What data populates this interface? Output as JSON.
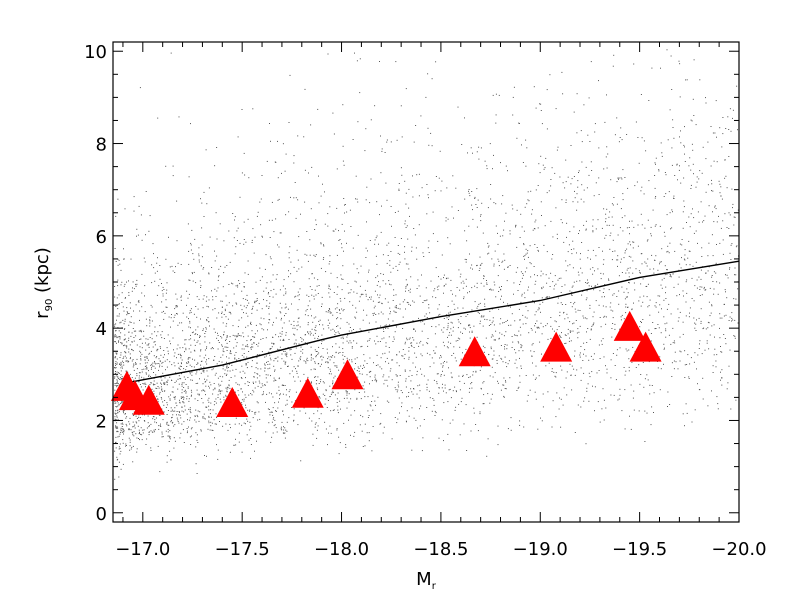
{
  "chart_data": {
    "type": "scatter",
    "title": "",
    "xlabel": {
      "main": "M",
      "sub": "r"
    },
    "ylabel": {
      "main": "r",
      "sub": "90",
      "rest": " (kpc)"
    },
    "xlim": [
      -16.85,
      -20.0
    ],
    "ylim": [
      -0.2,
      10.2
    ],
    "x_ticks": [
      -17.0,
      -17.5,
      -18.0,
      -18.5,
      -19.0,
      -19.5,
      -20.0
    ],
    "x_tick_labels": [
      "−17.0",
      "−17.5",
      "−18.0",
      "−18.5",
      "−19.0",
      "−19.5",
      "−20.0"
    ],
    "y_ticks": [
      0,
      2,
      4,
      6,
      8,
      10
    ],
    "y_tick_labels": [
      "0",
      "2",
      "4",
      "6",
      "8",
      "10"
    ],
    "grid": false,
    "series": [
      {
        "kind": "line",
        "color": "#000000",
        "x": [
          -16.9,
          -17.4,
          -17.9,
          -18.0,
          -18.5,
          -19.0,
          -19.5,
          -20.0
        ],
        "y": [
          2.8,
          3.2,
          3.75,
          3.85,
          4.25,
          4.6,
          5.1,
          5.45
        ]
      },
      {
        "kind": "marker",
        "marker": "triangle",
        "color": "#ff0000",
        "x": [
          -16.92,
          -16.96,
          -17.03,
          -17.45,
          -17.83,
          -18.03,
          -18.67,
          -19.08,
          -19.45,
          -19.53
        ],
        "y": [
          2.75,
          2.55,
          2.45,
          2.4,
          2.6,
          3.0,
          3.5,
          3.6,
          4.05,
          3.6
        ]
      },
      {
        "kind": "background-dots",
        "color": "#555555",
        "x": [],
        "y": []
      }
    ]
  }
}
